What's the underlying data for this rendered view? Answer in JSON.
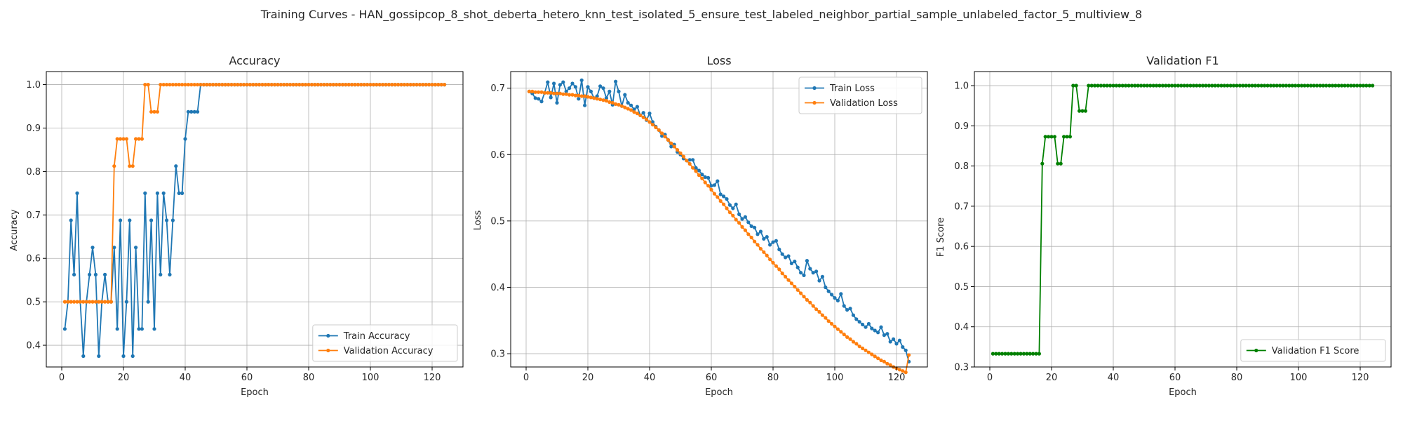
{
  "figure_title": "Training Curves - HAN_gossipcop_8_shot_deberta_hetero_knn_test_isolated_5_ensure_test_labeled_neighbor_partial_sample_unlabeled_factor_5_multiview_8",
  "chart_data": [
    {
      "type": "line",
      "title": "Accuracy",
      "xlabel": "Epoch",
      "ylabel": "Accuracy",
      "xlim": [
        -5,
        130
      ],
      "ylim": [
        0.35,
        1.03
      ],
      "xticks": [
        0,
        20,
        40,
        60,
        80,
        100,
        120
      ],
      "yticks": [
        0.4,
        0.5,
        0.6,
        0.7,
        0.8,
        0.9,
        1.0
      ],
      "grid": true,
      "legend_position": "lower-right",
      "series": [
        {
          "name": "Train Accuracy",
          "color": "#1f77b4",
          "x_start": 1,
          "values": [
            0.4375,
            0.5,
            0.6875,
            0.5625,
            0.75,
            0.5,
            0.375,
            0.5,
            0.5625,
            0.625,
            0.5625,
            0.375,
            0.5,
            0.5625,
            0.5,
            0.5,
            0.625,
            0.4375,
            0.6875,
            0.375,
            0.5,
            0.6875,
            0.375,
            0.625,
            0.4375,
            0.4375,
            0.75,
            0.5,
            0.6875,
            0.4375,
            0.75,
            0.5625,
            0.75,
            0.6875,
            0.5625,
            0.6875,
            0.8125,
            0.75,
            0.75,
            0.875,
            0.9375,
            0.9375,
            0.9375,
            0.9375,
            1.0,
            1.0,
            1.0,
            1.0,
            1.0,
            1.0,
            1.0,
            1.0,
            1.0,
            1.0,
            1.0,
            1.0,
            1.0,
            1.0,
            1.0,
            1.0,
            1.0,
            1.0,
            1.0,
            1.0,
            1.0,
            1.0,
            1.0,
            1.0,
            1.0,
            1.0,
            1.0,
            1.0,
            1.0,
            1.0,
            1.0,
            1.0,
            1.0,
            1.0,
            1.0,
            1.0,
            1.0,
            1.0,
            1.0,
            1.0,
            1.0,
            1.0,
            1.0,
            1.0,
            1.0,
            1.0,
            1.0,
            1.0,
            1.0,
            1.0,
            1.0,
            1.0,
            1.0,
            1.0,
            1.0,
            1.0,
            1.0,
            1.0,
            1.0,
            1.0,
            1.0,
            1.0,
            1.0,
            1.0,
            1.0,
            1.0,
            1.0,
            1.0,
            1.0,
            1.0,
            1.0,
            1.0,
            1.0,
            1.0,
            1.0,
            1.0,
            1.0,
            1.0,
            1.0,
            1.0
          ]
        },
        {
          "name": "Validation Accuracy",
          "color": "#ff7f0e",
          "x_start": 1,
          "values": [
            0.5,
            0.5,
            0.5,
            0.5,
            0.5,
            0.5,
            0.5,
            0.5,
            0.5,
            0.5,
            0.5,
            0.5,
            0.5,
            0.5,
            0.5,
            0.5,
            0.8125,
            0.875,
            0.875,
            0.875,
            0.875,
            0.8125,
            0.8125,
            0.875,
            0.875,
            0.875,
            1.0,
            1.0,
            0.9375,
            0.9375,
            0.9375,
            1.0,
            1.0,
            1.0,
            1.0,
            1.0,
            1.0,
            1.0,
            1.0,
            1.0,
            1.0,
            1.0,
            1.0,
            1.0,
            1.0,
            1.0,
            1.0,
            1.0,
            1.0,
            1.0,
            1.0,
            1.0,
            1.0,
            1.0,
            1.0,
            1.0,
            1.0,
            1.0,
            1.0,
            1.0,
            1.0,
            1.0,
            1.0,
            1.0,
            1.0,
            1.0,
            1.0,
            1.0,
            1.0,
            1.0,
            1.0,
            1.0,
            1.0,
            1.0,
            1.0,
            1.0,
            1.0,
            1.0,
            1.0,
            1.0,
            1.0,
            1.0,
            1.0,
            1.0,
            1.0,
            1.0,
            1.0,
            1.0,
            1.0,
            1.0,
            1.0,
            1.0,
            1.0,
            1.0,
            1.0,
            1.0,
            1.0,
            1.0,
            1.0,
            1.0,
            1.0,
            1.0,
            1.0,
            1.0,
            1.0,
            1.0,
            1.0,
            1.0,
            1.0,
            1.0,
            1.0,
            1.0,
            1.0,
            1.0,
            1.0,
            1.0,
            1.0,
            1.0,
            1.0,
            1.0,
            1.0,
            1.0,
            1.0,
            1.0
          ]
        }
      ]
    },
    {
      "type": "line",
      "title": "Loss",
      "xlabel": "Epoch",
      "ylabel": "Loss",
      "xlim": [
        -5,
        130
      ],
      "ylim": [
        0.28,
        0.725
      ],
      "xticks": [
        0,
        20,
        40,
        60,
        80,
        100,
        120
      ],
      "yticks": [
        0.3,
        0.4,
        0.5,
        0.6,
        0.7
      ],
      "grid": true,
      "legend_position": "top-right",
      "series": [
        {
          "name": "Train Loss",
          "color": "#1f77b4",
          "x_start": 1,
          "values": [
            0.695,
            0.692,
            0.685,
            0.684,
            0.68,
            0.693,
            0.709,
            0.686,
            0.707,
            0.678,
            0.705,
            0.709,
            0.695,
            0.7,
            0.707,
            0.702,
            0.684,
            0.712,
            0.674,
            0.702,
            0.695,
            0.685,
            0.688,
            0.703,
            0.7,
            0.685,
            0.695,
            0.675,
            0.71,
            0.695,
            0.673,
            0.69,
            0.678,
            0.674,
            0.668,
            0.672,
            0.659,
            0.663,
            0.652,
            0.662,
            0.649,
            0.642,
            0.637,
            0.628,
            0.63,
            0.622,
            0.612,
            0.615,
            0.604,
            0.6,
            0.594,
            0.591,
            0.592,
            0.592,
            0.58,
            0.576,
            0.57,
            0.566,
            0.565,
            0.553,
            0.554,
            0.56,
            0.54,
            0.537,
            0.533,
            0.524,
            0.519,
            0.525,
            0.51,
            0.503,
            0.506,
            0.498,
            0.492,
            0.49,
            0.48,
            0.484,
            0.473,
            0.476,
            0.464,
            0.468,
            0.47,
            0.457,
            0.45,
            0.445,
            0.447,
            0.436,
            0.439,
            0.43,
            0.422,
            0.418,
            0.44,
            0.428,
            0.422,
            0.424,
            0.41,
            0.416,
            0.4,
            0.394,
            0.389,
            0.384,
            0.38,
            0.39,
            0.372,
            0.366,
            0.368,
            0.358,
            0.352,
            0.348,
            0.344,
            0.34,
            0.345,
            0.338,
            0.335,
            0.332,
            0.34,
            0.328,
            0.33,
            0.318,
            0.322,
            0.315,
            0.32,
            0.31,
            0.305,
            0.288
          ]
        },
        {
          "name": "Validation Loss",
          "color": "#ff7f0e",
          "x_start": 1,
          "values": [
            0.695,
            0.695,
            0.694,
            0.694,
            0.694,
            0.693,
            0.693,
            0.693,
            0.692,
            0.692,
            0.692,
            0.691,
            0.691,
            0.69,
            0.69,
            0.689,
            0.689,
            0.688,
            0.688,
            0.687,
            0.686,
            0.685,
            0.684,
            0.683,
            0.682,
            0.681,
            0.679,
            0.678,
            0.676,
            0.675,
            0.673,
            0.671,
            0.669,
            0.667,
            0.664,
            0.662,
            0.659,
            0.656,
            0.653,
            0.649,
            0.645,
            0.641,
            0.637,
            0.632,
            0.627,
            0.622,
            0.617,
            0.612,
            0.607,
            0.602,
            0.597,
            0.591,
            0.586,
            0.58,
            0.575,
            0.569,
            0.564,
            0.558,
            0.553,
            0.547,
            0.541,
            0.536,
            0.53,
            0.525,
            0.519,
            0.513,
            0.508,
            0.502,
            0.497,
            0.491,
            0.486,
            0.48,
            0.475,
            0.469,
            0.464,
            0.458,
            0.453,
            0.448,
            0.442,
            0.437,
            0.432,
            0.427,
            0.421,
            0.416,
            0.411,
            0.406,
            0.401,
            0.396,
            0.391,
            0.386,
            0.381,
            0.377,
            0.372,
            0.367,
            0.363,
            0.358,
            0.354,
            0.349,
            0.345,
            0.341,
            0.337,
            0.333,
            0.329,
            0.325,
            0.322,
            0.318,
            0.315,
            0.311,
            0.308,
            0.305,
            0.302,
            0.299,
            0.296,
            0.293,
            0.29,
            0.288,
            0.285,
            0.283,
            0.28,
            0.278,
            0.276,
            0.274,
            0.272,
            0.298
          ]
        }
      ]
    },
    {
      "type": "line",
      "title": "Validation F1",
      "xlabel": "Epoch",
      "ylabel": "F1 Score",
      "xlim": [
        -5,
        130
      ],
      "ylim": [
        0.3,
        1.035
      ],
      "xticks": [
        0,
        20,
        40,
        60,
        80,
        100,
        120
      ],
      "yticks": [
        0.3,
        0.4,
        0.5,
        0.6,
        0.7,
        0.8,
        0.9,
        1.0
      ],
      "grid": true,
      "legend_position": "lower-right",
      "series": [
        {
          "name": "Validation F1 Score",
          "color": "#008000",
          "x_start": 1,
          "values": [
            0.333,
            0.333,
            0.333,
            0.333,
            0.333,
            0.333,
            0.333,
            0.333,
            0.333,
            0.333,
            0.333,
            0.333,
            0.333,
            0.333,
            0.333,
            0.333,
            0.806,
            0.873,
            0.873,
            0.873,
            0.873,
            0.806,
            0.806,
            0.873,
            0.873,
            0.873,
            1.0,
            1.0,
            0.937,
            0.937,
            0.937,
            1.0,
            1.0,
            1.0,
            1.0,
            1.0,
            1.0,
            1.0,
            1.0,
            1.0,
            1.0,
            1.0,
            1.0,
            1.0,
            1.0,
            1.0,
            1.0,
            1.0,
            1.0,
            1.0,
            1.0,
            1.0,
            1.0,
            1.0,
            1.0,
            1.0,
            1.0,
            1.0,
            1.0,
            1.0,
            1.0,
            1.0,
            1.0,
            1.0,
            1.0,
            1.0,
            1.0,
            1.0,
            1.0,
            1.0,
            1.0,
            1.0,
            1.0,
            1.0,
            1.0,
            1.0,
            1.0,
            1.0,
            1.0,
            1.0,
            1.0,
            1.0,
            1.0,
            1.0,
            1.0,
            1.0,
            1.0,
            1.0,
            1.0,
            1.0,
            1.0,
            1.0,
            1.0,
            1.0,
            1.0,
            1.0,
            1.0,
            1.0,
            1.0,
            1.0,
            1.0,
            1.0,
            1.0,
            1.0,
            1.0,
            1.0,
            1.0,
            1.0,
            1.0,
            1.0,
            1.0,
            1.0,
            1.0,
            1.0,
            1.0,
            1.0,
            1.0,
            1.0,
            1.0,
            1.0,
            1.0,
            1.0,
            1.0,
            1.0
          ]
        }
      ]
    }
  ]
}
